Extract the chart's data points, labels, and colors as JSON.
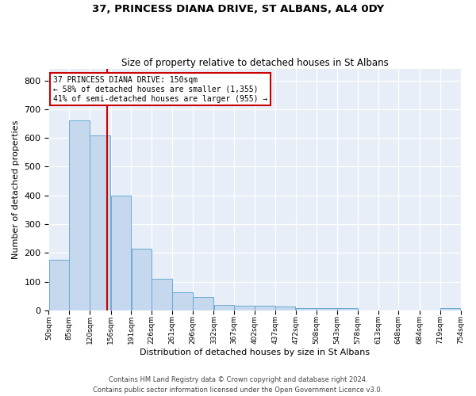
{
  "title": "37, PRINCESS DIANA DRIVE, ST ALBANS, AL4 0DY",
  "subtitle": "Size of property relative to detached houses in St Albans",
  "xlabel": "Distribution of detached houses by size in St Albans",
  "ylabel": "Number of detached properties",
  "bar_color": "#c5d8ed",
  "bar_edge_color": "#6aaad4",
  "background_color": "#e8eef8",
  "grid_color": "#ffffff",
  "vline_color": "#cc0000",
  "annotation_line1": "37 PRINCESS DIANA DRIVE: 150sqm",
  "annotation_line2": "← 58% of detached houses are smaller (1,355)",
  "annotation_line3": "41% of semi-detached houses are larger (955) →",
  "annotation_box_color": "white",
  "annotation_box_edge_color": "#cc0000",
  "bin_edges": [
    50,
    85,
    120,
    156,
    191,
    226,
    261,
    296,
    332,
    367,
    402,
    437,
    472,
    508,
    543,
    578,
    613,
    648,
    684,
    719,
    754
  ],
  "counts": [
    175,
    660,
    608,
    400,
    215,
    110,
    63,
    46,
    20,
    17,
    16,
    14,
    9,
    8,
    7,
    0,
    0,
    0,
    0,
    8
  ],
  "tick_labels": [
    "50sqm",
    "85sqm",
    "120sqm",
    "156sqm",
    "191sqm",
    "226sqm",
    "261sqm",
    "296sqm",
    "332sqm",
    "367sqm",
    "402sqm",
    "437sqm",
    "472sqm",
    "508sqm",
    "543sqm",
    "578sqm",
    "613sqm",
    "648sqm",
    "684sqm",
    "719sqm",
    "754sqm"
  ],
  "vline_x": 150,
  "ylim": [
    0,
    840
  ],
  "yticks": [
    0,
    100,
    200,
    300,
    400,
    500,
    600,
    700,
    800
  ],
  "footer": "Contains HM Land Registry data © Crown copyright and database right 2024.\nContains public sector information licensed under the Open Government Licence v3.0.",
  "figsize": [
    6.0,
    5.0
  ],
  "dpi": 100
}
